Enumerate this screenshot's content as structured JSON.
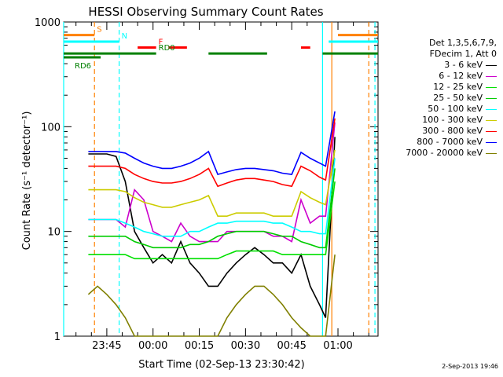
{
  "chart_data": {
    "type": "line",
    "title": "HESSI Observing Summary Count Rates",
    "xlabel": "Start Time (02-Sep-13 23:30:42)",
    "ylabel": "Count Rate (s⁻¹ detector⁻¹)",
    "y_scale": "log",
    "ylim": [
      1,
      1000
    ],
    "xlim_minutes": [
      -14,
      88
    ],
    "x_ticks": [
      {
        "label": "23:45",
        "minute": 0
      },
      {
        "label": "00:00",
        "minute": 15
      },
      {
        "label": "00:15",
        "minute": 30
      },
      {
        "label": "00:30",
        "minute": 45
      },
      {
        "label": "00:45",
        "minute": 60
      },
      {
        "label": "01:00",
        "minute": 75
      }
    ],
    "y_ticks": [
      {
        "label": "1",
        "value": 1
      },
      {
        "label": "10",
        "value": 10
      },
      {
        "label": "100",
        "value": 100
      },
      {
        "label": "1000",
        "value": 1000
      }
    ],
    "legend_header": [
      "Det 1,3,5,6,7,9,",
      "FDecim 1, Att 0"
    ],
    "series": [
      {
        "name": "3 - 6 keV",
        "color": "#000000",
        "x": [
          -6,
          -3,
          0,
          3,
          6,
          9,
          12,
          15,
          18,
          21,
          24,
          27,
          30,
          33,
          36,
          39,
          42,
          45,
          48,
          51,
          54,
          57,
          60,
          63,
          66,
          69,
          71,
          74
        ],
        "y": [
          55,
          55,
          55,
          52,
          30,
          10,
          7,
          5,
          6,
          5,
          8,
          5,
          4,
          3,
          3,
          4,
          5,
          6,
          7,
          6,
          5,
          5,
          4,
          6,
          3,
          2,
          1.5,
          80
        ]
      },
      {
        "name": "6 - 12 keV",
        "color": "#cc00cc",
        "x": [
          -6,
          -3,
          0,
          3,
          6,
          9,
          12,
          15,
          18,
          21,
          24,
          27,
          30,
          33,
          36,
          39,
          42,
          45,
          48,
          51,
          54,
          57,
          60,
          63,
          66,
          69,
          71,
          74
        ],
        "y": [
          13,
          13,
          13,
          13,
          11,
          25,
          20,
          10,
          9,
          8,
          12,
          9,
          8,
          8,
          8,
          10,
          10,
          10,
          10,
          10,
          9,
          9,
          8,
          20,
          12,
          14,
          14,
          110
        ]
      },
      {
        "name": "12 - 25 keV",
        "color": "#00e000",
        "x": [
          -6,
          -3,
          0,
          3,
          6,
          9,
          12,
          15,
          18,
          21,
          24,
          27,
          30,
          33,
          36,
          39,
          42,
          45,
          48,
          51,
          54,
          57,
          60,
          63,
          66,
          69,
          71,
          74
        ],
        "y": [
          6,
          6,
          6,
          6,
          6,
          5.5,
          5.5,
          5.5,
          5.5,
          5.5,
          5.5,
          5.5,
          5.5,
          5.5,
          5.5,
          6,
          6.5,
          6.5,
          6.5,
          6.5,
          6.5,
          6,
          6,
          6,
          6,
          6,
          6,
          30
        ]
      },
      {
        "name": "25 - 50 keV",
        "color": "#00cc00",
        "x": [
          -6,
          -3,
          0,
          3,
          6,
          9,
          12,
          15,
          18,
          21,
          24,
          27,
          30,
          33,
          36,
          39,
          42,
          45,
          48,
          51,
          54,
          57,
          60,
          63,
          66,
          69,
          71,
          74
        ],
        "y": [
          9,
          9,
          9,
          9,
          9,
          8,
          7.5,
          7,
          7,
          7,
          7,
          7.5,
          7.5,
          8,
          9,
          9.5,
          10,
          10,
          10,
          10,
          9.5,
          9,
          9,
          8,
          7.5,
          7,
          7,
          40
        ]
      },
      {
        "name": "50 - 100 keV",
        "color": "#00ffff",
        "x": [
          -6,
          -3,
          0,
          3,
          6,
          9,
          12,
          15,
          18,
          21,
          24,
          27,
          30,
          33,
          36,
          39,
          42,
          45,
          48,
          51,
          54,
          57,
          60,
          63,
          66,
          69,
          71,
          74
        ],
        "y": [
          13,
          13,
          13,
          13,
          12,
          11,
          10,
          9.5,
          9,
          9,
          9,
          10,
          10,
          11,
          12,
          12,
          12.5,
          12.5,
          12.5,
          12.5,
          12,
          12,
          11,
          10,
          10,
          9.5,
          9.5,
          50
        ]
      },
      {
        "name": "100 - 300 keV",
        "color": "#cccc00",
        "x": [
          -6,
          -3,
          0,
          3,
          6,
          9,
          12,
          15,
          18,
          21,
          24,
          27,
          30,
          33,
          36,
          39,
          42,
          45,
          48,
          51,
          54,
          57,
          60,
          63,
          66,
          69,
          71,
          74
        ],
        "y": [
          25,
          25,
          25,
          25,
          24,
          21,
          19,
          18,
          17,
          17,
          18,
          19,
          20,
          22,
          14,
          14,
          15,
          15,
          15,
          15,
          14,
          14,
          14,
          24,
          21,
          19,
          18,
          60
        ]
      },
      {
        "name": "300 - 800 keV",
        "color": "#ff0000",
        "x": [
          -6,
          -3,
          0,
          3,
          6,
          9,
          12,
          15,
          18,
          21,
          24,
          27,
          30,
          33,
          36,
          39,
          42,
          45,
          48,
          51,
          54,
          57,
          60,
          63,
          66,
          69,
          71,
          74
        ],
        "y": [
          42,
          42,
          42,
          42,
          40,
          35,
          32,
          30,
          29,
          29,
          30,
          32,
          35,
          40,
          27,
          29,
          31,
          32,
          32,
          31,
          30,
          28,
          27,
          42,
          38,
          33,
          31,
          120
        ]
      },
      {
        "name": "800 - 7000 keV",
        "color": "#0000ff",
        "x": [
          -6,
          -3,
          0,
          3,
          6,
          9,
          12,
          15,
          18,
          21,
          24,
          27,
          30,
          33,
          36,
          39,
          42,
          45,
          48,
          51,
          54,
          57,
          60,
          63,
          66,
          69,
          71,
          74
        ],
        "y": [
          58,
          58,
          58,
          58,
          56,
          50,
          45,
          42,
          40,
          40,
          42,
          45,
          50,
          58,
          35,
          37,
          39,
          40,
          40,
          39,
          38,
          36,
          35,
          57,
          50,
          45,
          42,
          140
        ]
      },
      {
        "name": "7000 - 20000 keV",
        "color": "#808000",
        "x": [
          -6,
          -3,
          0,
          3,
          6,
          9,
          12,
          15,
          18,
          21,
          24,
          27,
          30,
          33,
          36,
          39,
          42,
          45,
          48,
          51,
          54,
          57,
          60,
          63,
          66,
          69,
          71,
          74
        ],
        "y": [
          2.5,
          3,
          2.5,
          2,
          1.5,
          1,
          1,
          1,
          1,
          1,
          1,
          1,
          1,
          1,
          1,
          1.5,
          2,
          2.5,
          3,
          3,
          2.5,
          2,
          1.5,
          1.2,
          1,
          1,
          1,
          6
        ]
      }
    ],
    "state_bars": [
      {
        "label": "S",
        "color": "#ff8000",
        "level": 750,
        "segments": [
          [
            -14,
            -4
          ],
          [
            75,
            88
          ]
        ]
      },
      {
        "label": "N",
        "color": "#00ffff",
        "level": 650,
        "segments": [
          [
            -14,
            4
          ],
          [
            72,
            88
          ]
        ]
      },
      {
        "label": "F",
        "color": "#ff0000",
        "level": 570,
        "segments": [
          [
            10,
            16
          ],
          [
            20,
            26
          ],
          [
            63,
            66
          ]
        ]
      },
      {
        "label": "RD0",
        "color": "#008000",
        "level": 500,
        "segments": [
          [
            -14,
            16
          ],
          [
            33,
            52
          ],
          [
            70,
            88
          ]
        ]
      },
      {
        "label": "RD6",
        "color": "#008000",
        "level": 460,
        "segments": [
          [
            -14,
            -2
          ]
        ]
      }
    ],
    "vertical_markers": [
      {
        "minute": -14,
        "color": "#00ffff",
        "style": "solid"
      },
      {
        "minute": -4,
        "color": "#ff8000",
        "style": "dashed"
      },
      {
        "minute": 4,
        "color": "#00ffff",
        "style": "dashed"
      },
      {
        "minute": 70,
        "color": "#00ffff",
        "style": "solid"
      },
      {
        "minute": 73,
        "color": "#ff8000",
        "style": "solid"
      },
      {
        "minute": 85,
        "color": "#ff8000",
        "style": "dashed"
      },
      {
        "minute": 87,
        "color": "#00ffff",
        "style": "dashed"
      }
    ]
  },
  "footer": {
    "date_stamp": "2-Sep-2013 19:46"
  }
}
